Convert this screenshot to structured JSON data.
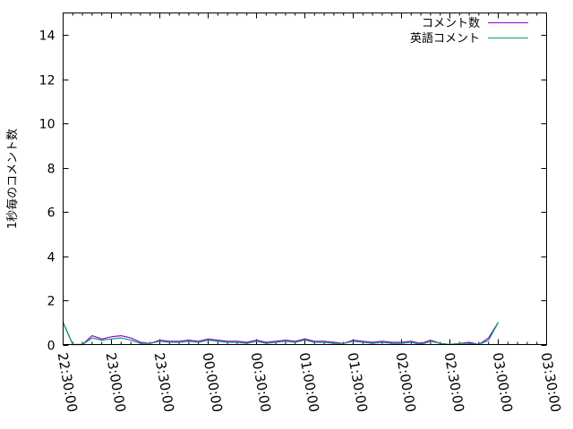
{
  "chart_data": {
    "type": "line",
    "title": "",
    "xlabel": "",
    "ylabel": "1秒毎のコメント数",
    "xlim": [
      "22:30:00",
      "03:30:00"
    ],
    "ylim": [
      0,
      15
    ],
    "x_ticks": [
      "22:30:00",
      "23:00:00",
      "23:30:00",
      "00:00:00",
      "00:30:00",
      "01:00:00",
      "01:30:00",
      "02:00:00",
      "02:30:00",
      "03:00:00",
      "03:30:00"
    ],
    "y_ticks": [
      0,
      2,
      4,
      6,
      8,
      10,
      12,
      14
    ],
    "grid": false,
    "legend": "top-right",
    "x": [
      "22:30",
      "22:36",
      "22:42",
      "22:48",
      "22:54",
      "23:00",
      "23:06",
      "23:12",
      "23:18",
      "23:24",
      "23:30",
      "23:36",
      "23:42",
      "23:48",
      "23:54",
      "00:00",
      "00:06",
      "00:12",
      "00:18",
      "00:24",
      "00:30",
      "00:36",
      "00:42",
      "00:48",
      "00:54",
      "01:00",
      "01:06",
      "01:12",
      "01:18",
      "01:24",
      "01:30",
      "01:36",
      "01:42",
      "01:48",
      "01:54",
      "02:00",
      "02:06",
      "02:12",
      "02:18",
      "02:24",
      "02:30",
      "02:36",
      "02:42",
      "02:48",
      "02:54",
      "03:00"
    ],
    "series": [
      {
        "name": "コメント数",
        "color": "#9400d3",
        "values": [
          1,
          0,
          0,
          0.4,
          0.25,
          0.35,
          0.4,
          0.3,
          0.1,
          0.05,
          0.2,
          0.15,
          0.15,
          0.2,
          0.15,
          0.25,
          0.2,
          0.15,
          0.15,
          0.1,
          0.2,
          0.1,
          0.15,
          0.2,
          0.15,
          0.25,
          0.15,
          0.15,
          0.1,
          0.05,
          0.2,
          0.15,
          0.1,
          0.15,
          0.1,
          0.1,
          0.15,
          0.05,
          0.2,
          0.05,
          0,
          0.05,
          0.1,
          0,
          0.3,
          1
        ]
      },
      {
        "name": "英語コメント",
        "color": "#009e73",
        "values": [
          1,
          0,
          0,
          0.3,
          0.2,
          0.25,
          0.3,
          0.2,
          0.05,
          0.05,
          0.15,
          0.1,
          0.1,
          0.15,
          0.1,
          0.2,
          0.15,
          0.1,
          0.1,
          0.05,
          0.15,
          0.05,
          0.1,
          0.15,
          0.1,
          0.2,
          0.1,
          0.1,
          0.05,
          0.05,
          0.15,
          0.1,
          0.05,
          0.1,
          0.05,
          0.05,
          0.1,
          0,
          0.15,
          0.05,
          0,
          0.05,
          0.05,
          0,
          0.2,
          1
        ]
      }
    ]
  }
}
